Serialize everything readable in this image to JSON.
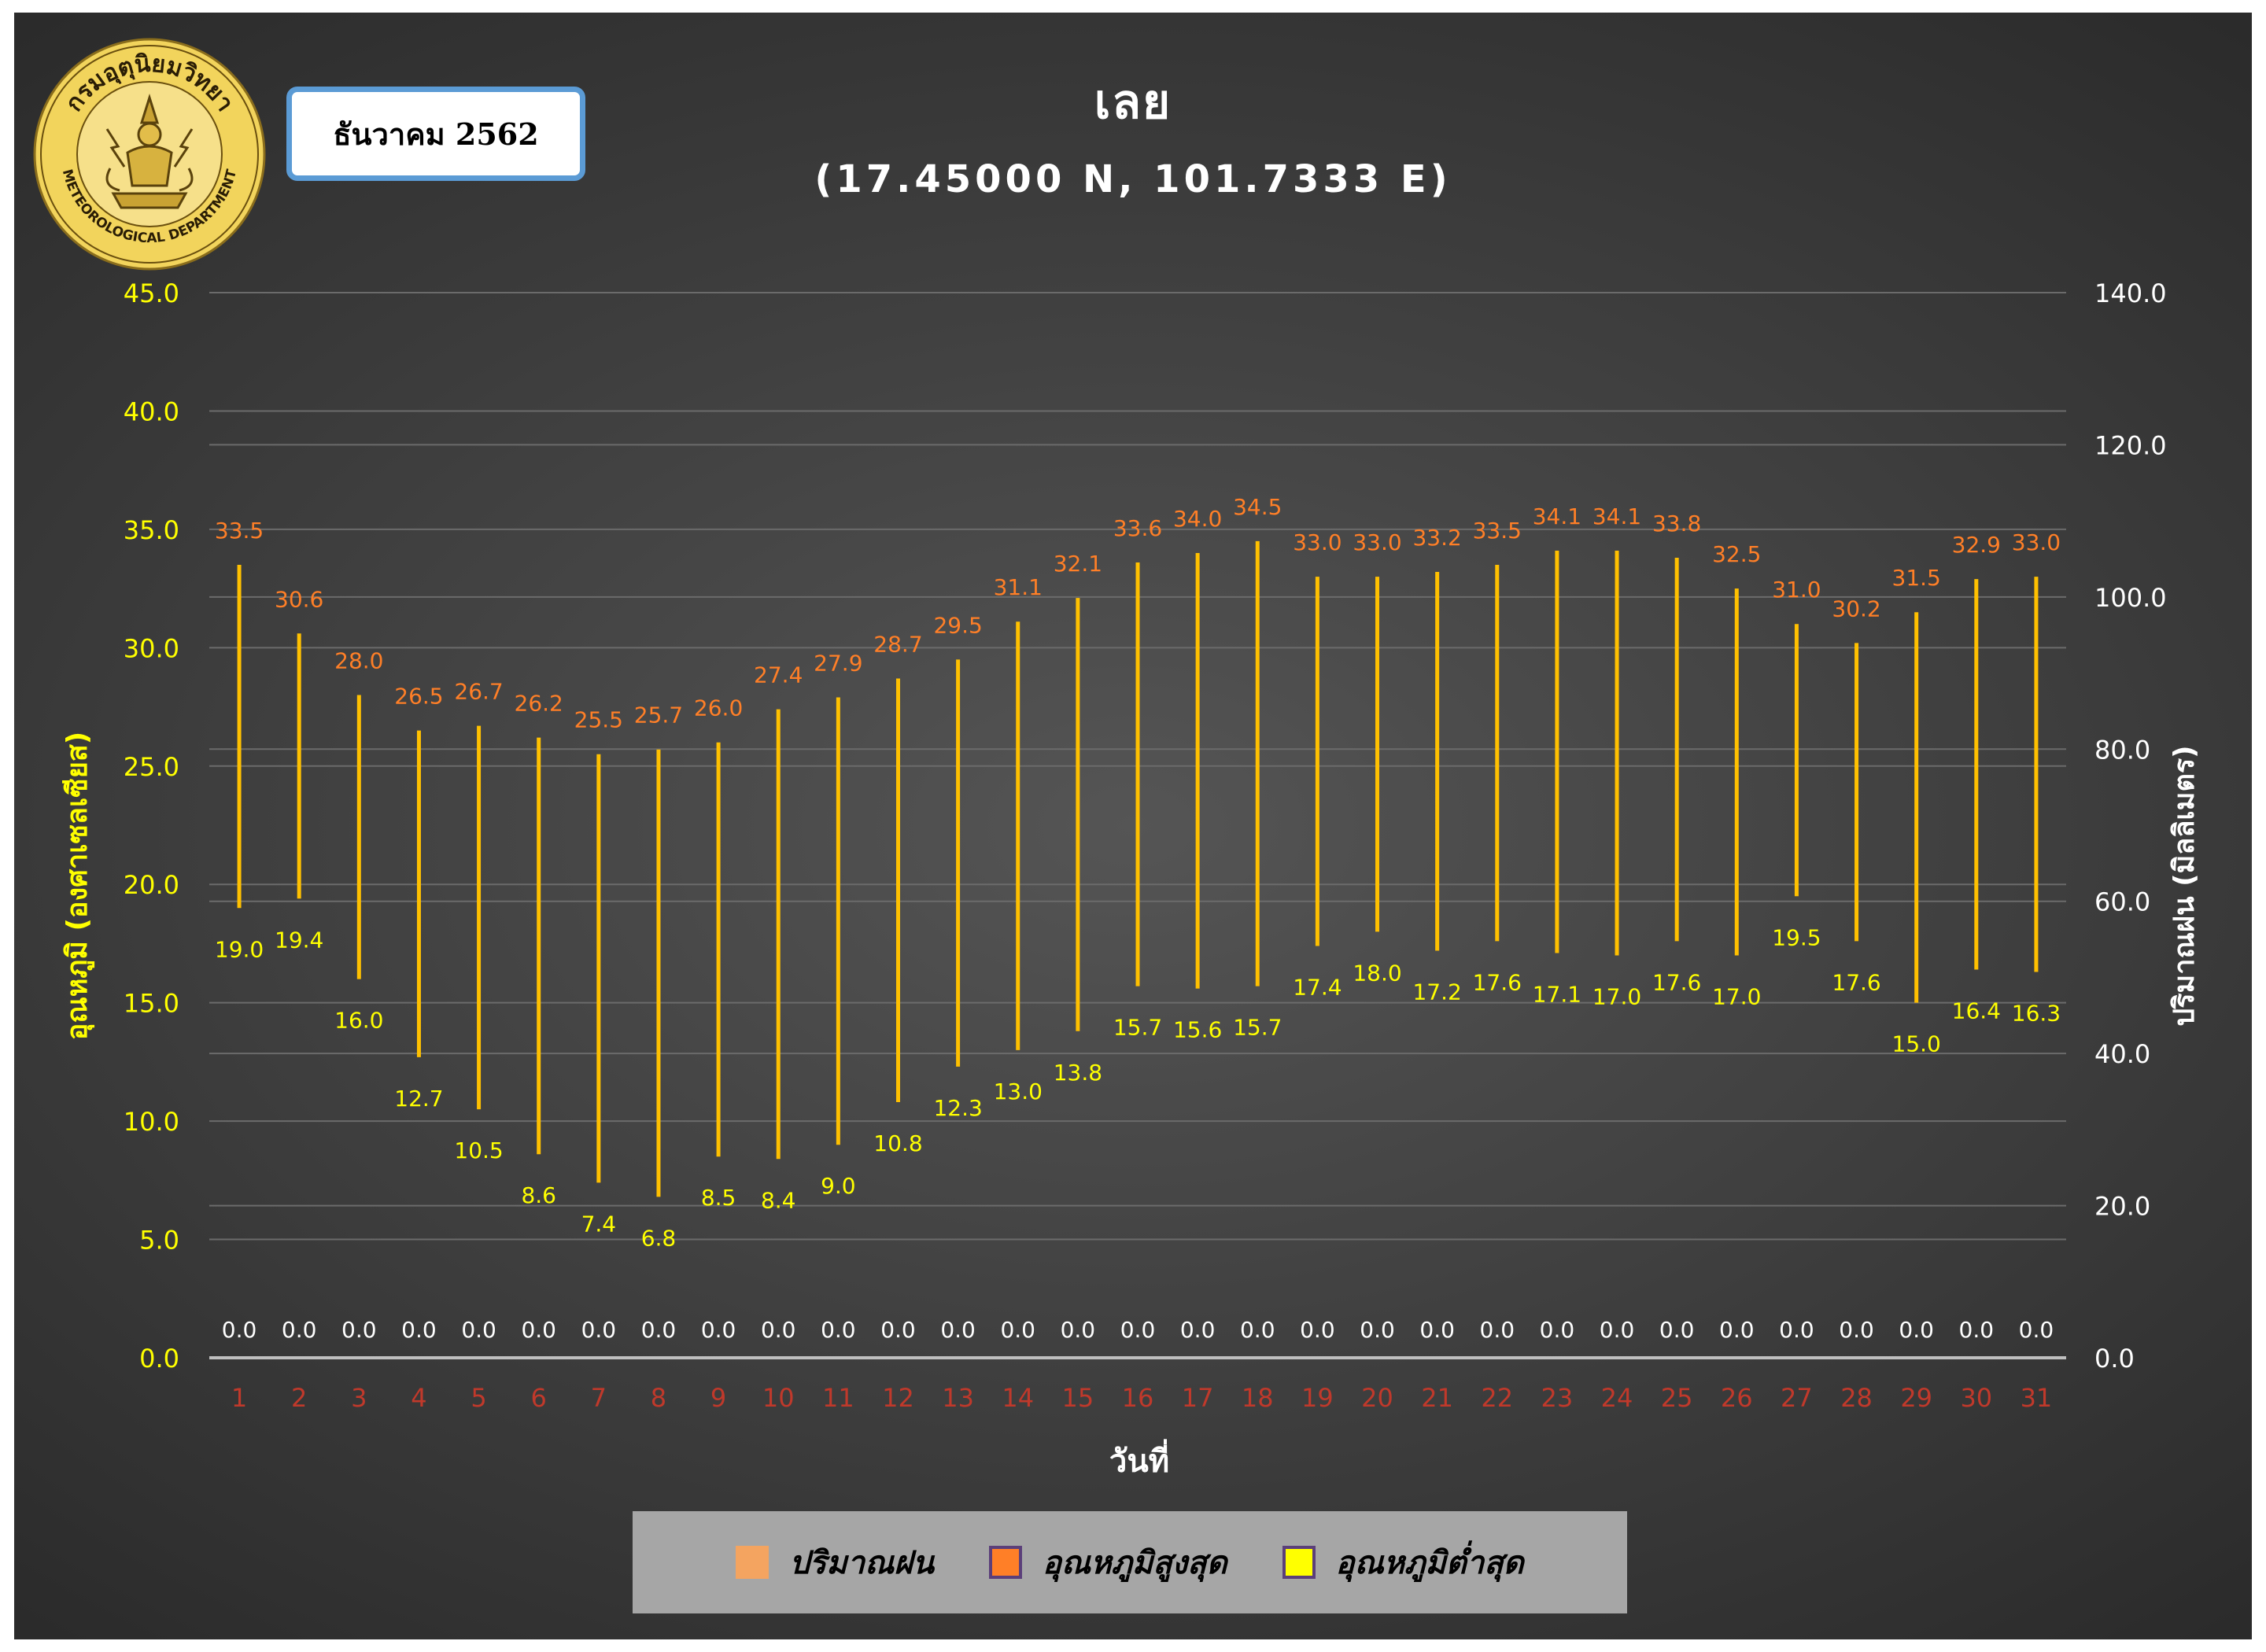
{
  "header": {
    "title": "เลย",
    "subtitle": "(17.45000 N, 101.7333 E)",
    "month": "ธันวาคม 2562",
    "logo_text_top": "กรมอุตุนิยมวิทยา",
    "logo_text_bottom": "METEOROLOGICAL DEPARTMENT"
  },
  "colors": {
    "rain": "#f4a460",
    "tmax_label": "#ff7f27",
    "tmin_label": "#ffff00",
    "bar": "#ffc000",
    "left_axis": "#ffff00",
    "right_axis": "#ffffff",
    "x_ticks": "#c0392b",
    "grid": "#6b6b6b",
    "rain_label": "#ffffff"
  },
  "chart_data": {
    "type": "bar",
    "xlabel": "วันที่",
    "ylabel_left": "อุณหภูมิ (องศาเซลเซียส)",
    "ylabel_right": "ปริมาณฝน (มิลลิเมตร)",
    "ylim_left": [
      0,
      45
    ],
    "ylim_right": [
      0,
      140
    ],
    "yticks_left": [
      "0.0",
      "5.0",
      "10.0",
      "15.0",
      "20.0",
      "25.0",
      "30.0",
      "35.0",
      "40.0",
      "45.0"
    ],
    "yticks_right": [
      "0.0",
      "20.0",
      "40.0",
      "60.0",
      "80.0",
      "100.0",
      "120.0",
      "140.0"
    ],
    "categories": [
      "1",
      "2",
      "3",
      "4",
      "5",
      "6",
      "7",
      "8",
      "9",
      "10",
      "11",
      "12",
      "13",
      "14",
      "15",
      "16",
      "17",
      "18",
      "19",
      "20",
      "21",
      "22",
      "23",
      "24",
      "25",
      "26",
      "27",
      "28",
      "29",
      "30",
      "31"
    ],
    "series": [
      {
        "name": "ปริมาณฝน",
        "axis": "right",
        "values": [
          0,
          0,
          0,
          0,
          0,
          0,
          0,
          0,
          0,
          0,
          0,
          0,
          0,
          0,
          0,
          0,
          0,
          0,
          0,
          0,
          0,
          0,
          0,
          0,
          0,
          0,
          0,
          0,
          0,
          0,
          0
        ],
        "labels": [
          "0.0",
          "0.0",
          "0.0",
          "0.0",
          "0.0",
          "0.0",
          "0.0",
          "0.0",
          "0.0",
          "0.0",
          "0.0",
          "0.0",
          "0.0",
          "0.0",
          "0.0",
          "0.0",
          "0.0",
          "0.0",
          "0.0",
          "0.0",
          "0.0",
          "0.0",
          "0.0",
          "0.0",
          "0.0",
          "0.0",
          "0.0",
          "0.0",
          "0.0",
          "0.0",
          "0.0"
        ]
      },
      {
        "name": "อุณหภูมิสูงสุด",
        "axis": "left",
        "values": [
          33.5,
          30.6,
          28.0,
          26.5,
          26.7,
          26.2,
          25.5,
          25.7,
          26.0,
          27.4,
          27.9,
          28.7,
          29.5,
          31.1,
          32.1,
          33.6,
          34.0,
          34.5,
          33.0,
          33.0,
          33.2,
          33.5,
          34.1,
          34.1,
          33.8,
          32.5,
          31.0,
          30.2,
          31.5,
          32.9,
          33.0
        ],
        "labels": [
          "33.5",
          "30.6",
          "28.0",
          "26.5",
          "26.7",
          "26.2",
          "25.5",
          "25.7",
          "26.0",
          "27.4",
          "27.9",
          "28.7",
          "29.5",
          "31.1",
          "32.1",
          "33.6",
          "34.0",
          "34.5",
          "33.0",
          "33.0",
          "33.2",
          "33.5",
          "34.1",
          "34.1",
          "33.8",
          "32.5",
          "31.0",
          "30.2",
          "31.5",
          "32.9",
          "33.0"
        ]
      },
      {
        "name": "อุณหภูมิต่ำสุด",
        "axis": "left",
        "values": [
          19.0,
          19.4,
          16.0,
          12.7,
          10.5,
          8.6,
          7.4,
          6.8,
          8.5,
          8.4,
          9.0,
          10.8,
          12.3,
          13.0,
          13.8,
          15.7,
          15.6,
          15.7,
          17.4,
          18.0,
          17.2,
          17.6,
          17.1,
          17.0,
          17.6,
          17.0,
          19.5,
          17.6,
          15.0,
          16.4,
          16.3
        ],
        "labels": [
          "19.0",
          "19.4",
          "16.0",
          "12.7",
          "10.5",
          "8.6",
          "7.4",
          "6.8",
          "8.5",
          "8.4",
          "9.0",
          "10.8",
          "12.3",
          "13.0",
          "13.8",
          "15.7",
          "15.6",
          "15.7",
          "17.4",
          "18.0",
          "17.2",
          "17.6",
          "17.1",
          "17.0",
          "17.6",
          "17.0",
          "19.5",
          "17.6",
          "15.0",
          "16.4",
          "16.3"
        ]
      }
    ],
    "legend_position": "bottom",
    "grid": true
  },
  "legend": [
    {
      "label": "ปริมาณฝน",
      "swatch": "#f4a460",
      "border": "#f4a460"
    },
    {
      "label": "อุณหภูมิสูงสุด",
      "swatch": "#ff7f27",
      "border": "#5b3f7a"
    },
    {
      "label": "อุณหภูมิต่ำสุด",
      "swatch": "#ffff00",
      "border": "#5b3f7a"
    }
  ]
}
